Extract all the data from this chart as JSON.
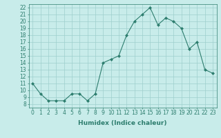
{
  "x": [
    0,
    1,
    2,
    3,
    4,
    5,
    6,
    7,
    8,
    9,
    10,
    11,
    12,
    13,
    14,
    15,
    16,
    17,
    18,
    19,
    20,
    21,
    22,
    23
  ],
  "y": [
    11,
    9.5,
    8.5,
    8.5,
    8.5,
    9.5,
    9.5,
    8.5,
    9.5,
    14,
    14.5,
    15,
    18,
    20,
    21,
    22,
    19.5,
    20.5,
    20,
    19,
    16,
    17,
    13,
    12.5
  ],
  "line_color": "#2d7d6e",
  "marker": "D",
  "marker_size": 2,
  "bg_color": "#c8ecea",
  "grid_color": "#9ecfcc",
  "xlabel": "Humidex (Indice chaleur)",
  "xlim": [
    -0.5,
    23.5
  ],
  "ylim": [
    7.5,
    22.5
  ],
  "xticks": [
    0,
    1,
    2,
    3,
    4,
    5,
    6,
    7,
    8,
    9,
    10,
    11,
    12,
    13,
    14,
    15,
    16,
    17,
    18,
    19,
    20,
    21,
    22,
    23
  ],
  "yticks": [
    8,
    9,
    10,
    11,
    12,
    13,
    14,
    15,
    16,
    17,
    18,
    19,
    20,
    21,
    22
  ],
  "xlabel_fontsize": 6.5,
  "tick_fontsize": 5.5
}
